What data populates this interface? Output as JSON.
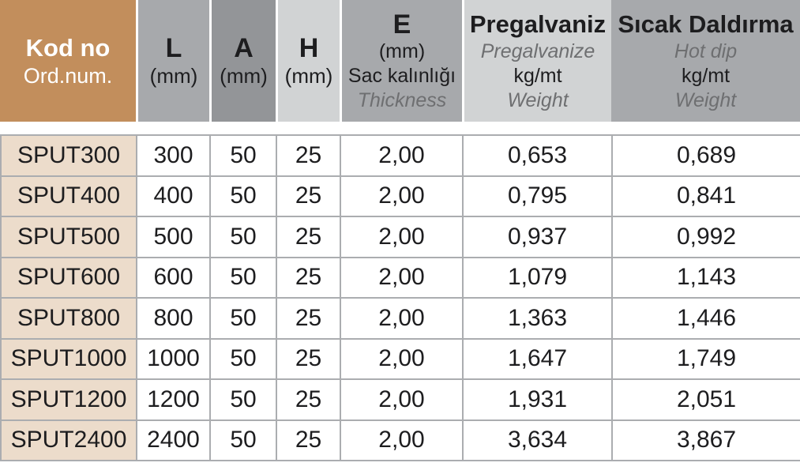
{
  "colors": {
    "brand_brown": "#c28e5c",
    "row_label_tan": "#ecdccb",
    "gray_medium": "#a7a9ac",
    "gray_dark": "#939598",
    "gray_light": "#d1d3d4",
    "grid_border": "#abadb0",
    "text_black": "#1d1d1f",
    "text_gray_italic": "#6e6f71",
    "header_text_white": "#ffffff"
  },
  "header": {
    "kod": {
      "title": "Kod no",
      "subtitle": "Ord.num."
    },
    "l": {
      "title": "L",
      "unit": "(mm)"
    },
    "a": {
      "title": "A",
      "unit": "(mm)"
    },
    "h": {
      "title": "H",
      "unit": "(mm)"
    },
    "e": {
      "title": "E",
      "unit": "(mm)",
      "desc_tr": "Sac kalınlığı",
      "desc_en": "Thickness"
    },
    "pre": {
      "title": "Pregalvaniz",
      "subtitle_en": "Pregalvanize",
      "unit": "kg/mt",
      "weight_label": "Weight"
    },
    "hot": {
      "title": "Sıcak Daldırma",
      "subtitle_en": "Hot dip",
      "unit": "kg/mt",
      "weight_label": "Weight"
    }
  },
  "row_keys": [
    "kod",
    "l",
    "a",
    "h",
    "e",
    "pre",
    "hot"
  ],
  "rows": [
    {
      "kod": "SPUT300",
      "l": "300",
      "a": "50",
      "h": "25",
      "e": "2,00",
      "pre": "0,653",
      "hot": "0,689"
    },
    {
      "kod": "SPUT400",
      "l": "400",
      "a": "50",
      "h": "25",
      "e": "2,00",
      "pre": "0,795",
      "hot": "0,841"
    },
    {
      "kod": "SPUT500",
      "l": "500",
      "a": "50",
      "h": "25",
      "e": "2,00",
      "pre": "0,937",
      "hot": "0,992"
    },
    {
      "kod": "SPUT600",
      "l": "600",
      "a": "50",
      "h": "25",
      "e": "2,00",
      "pre": "1,079",
      "hot": "1,143"
    },
    {
      "kod": "SPUT800",
      "l": "800",
      "a": "50",
      "h": "25",
      "e": "2,00",
      "pre": "1,363",
      "hot": "1,446"
    },
    {
      "kod": "SPUT1000",
      "l": "1000",
      "a": "50",
      "h": "25",
      "e": "2,00",
      "pre": "1,647",
      "hot": "1,749"
    },
    {
      "kod": "SPUT1200",
      "l": "1200",
      "a": "50",
      "h": "25",
      "e": "2,00",
      "pre": "1,931",
      "hot": "2,051"
    },
    {
      "kod": "SPUT2400",
      "l": "2400",
      "a": "50",
      "h": "25",
      "e": "2,00",
      "pre": "3,634",
      "hot": "3,867"
    }
  ]
}
